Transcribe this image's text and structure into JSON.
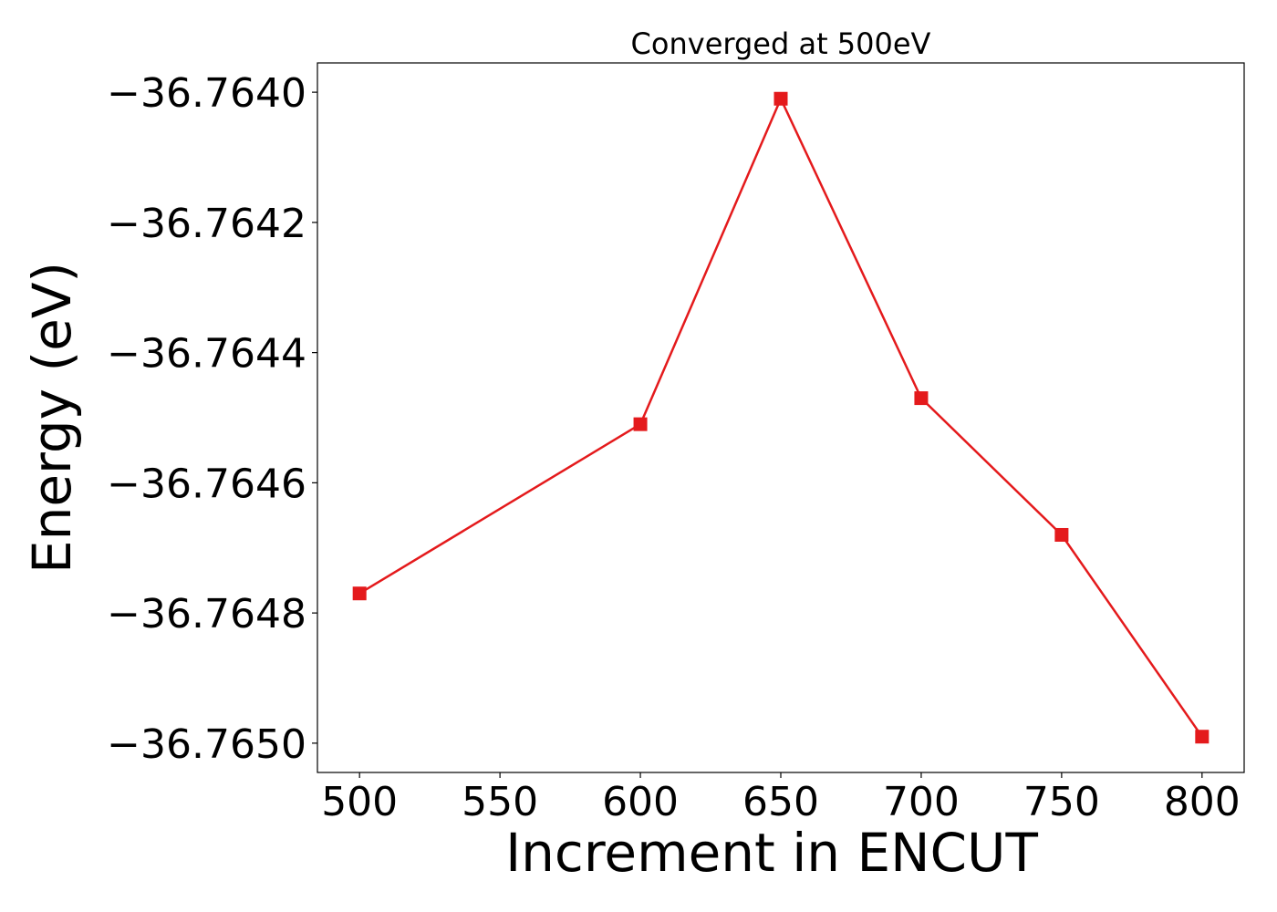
{
  "chart_data": {
    "type": "line",
    "title": "Converged at 500eV",
    "xlabel": "Increment in ENCUT",
    "ylabel": "Energy (eV)",
    "x": [
      500,
      600,
      650,
      700,
      750,
      800
    ],
    "series": [
      {
        "values": [
          -36.76477,
          -36.76451,
          -36.76401,
          -36.76447,
          -36.76468,
          -36.76499
        ],
        "color": "#e41a1c",
        "marker": "square"
      }
    ],
    "xlim": [
      485,
      815
    ],
    "ylim": [
      -36.765045,
      -36.763955
    ],
    "xticks": [
      500,
      550,
      600,
      650,
      700,
      750,
      800
    ],
    "xtick_labels": [
      "500",
      "550",
      "600",
      "650",
      "700",
      "750",
      "800"
    ],
    "yticks": [
      -36.764,
      -36.7642,
      -36.7644,
      -36.7646,
      -36.7648,
      -36.765
    ],
    "ytick_labels": [
      "−36.7640",
      "−36.7642",
      "−36.7644",
      "−36.7646",
      "−36.7648",
      "−36.7650"
    ],
    "grid": false,
    "legend": "none"
  }
}
